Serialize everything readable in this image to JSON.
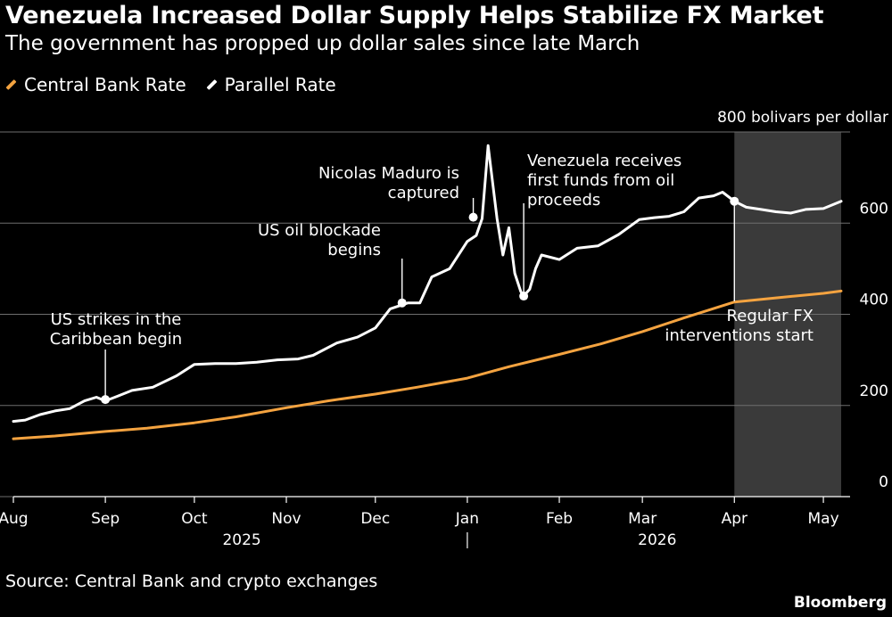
{
  "title": "Venezuela Increased Dollar Supply Helps Stabilize FX Market",
  "subtitle": "The government has propped up dollar sales since late March",
  "source": "Source: Central Bank and crypto exchanges",
  "brand": "Bloomberg",
  "colors": {
    "central": "#f4a340",
    "parallel": "#ffffff",
    "shade": "#3a3a3a",
    "grid": "#6e6e6e"
  },
  "chart_data": {
    "type": "line",
    "y_unit_label": "800 bolivars per dollar",
    "ylim": [
      0,
      800
    ],
    "y_ticks": [
      0,
      200,
      400,
      600
    ],
    "x_range": [
      "2025-08-01",
      "2026-05-10"
    ],
    "x_ticks": [
      {
        "label": "Aug",
        "date": "2025-08-01"
      },
      {
        "label": "Sep",
        "date": "2025-09-01"
      },
      {
        "label": "Oct",
        "date": "2025-10-01"
      },
      {
        "label": "Nov",
        "date": "2025-11-01"
      },
      {
        "label": "Dec",
        "date": "2025-12-01"
      },
      {
        "label": "Jan",
        "date": "2026-01-01"
      },
      {
        "label": "Feb",
        "date": "2026-02-01"
      },
      {
        "label": "Mar",
        "date": "2026-03-01"
      },
      {
        "label": "Apr",
        "date": "2026-04-01"
      },
      {
        "label": "May",
        "date": "2026-05-01"
      }
    ],
    "year_labels": [
      {
        "label": "2025",
        "date": "2025-10-17"
      },
      {
        "label": "2026",
        "date": "2026-03-06"
      }
    ],
    "year_divider_date": "2026-01-01",
    "shaded_period": {
      "start": "2026-04-01",
      "end": "2026-05-07"
    },
    "grid": true,
    "legend_position": "top-left",
    "series": [
      {
        "name": "Central Bank Rate",
        "color": "#f4a340",
        "points": [
          [
            "2025-08-01",
            127
          ],
          [
            "2025-08-15",
            133
          ],
          [
            "2025-09-01",
            143
          ],
          [
            "2025-09-15",
            150
          ],
          [
            "2025-10-01",
            162
          ],
          [
            "2025-10-15",
            175
          ],
          [
            "2025-11-01",
            195
          ],
          [
            "2025-11-15",
            210
          ],
          [
            "2025-12-01",
            225
          ],
          [
            "2025-12-15",
            240
          ],
          [
            "2026-01-01",
            260
          ],
          [
            "2026-01-15",
            285
          ],
          [
            "2026-02-01",
            312
          ],
          [
            "2026-02-15",
            335
          ],
          [
            "2026-03-01",
            362
          ],
          [
            "2026-03-15",
            392
          ],
          [
            "2026-04-01",
            427
          ],
          [
            "2026-04-15",
            436
          ],
          [
            "2026-05-01",
            446
          ],
          [
            "2026-05-07",
            451
          ]
        ]
      },
      {
        "name": "Parallel Rate",
        "color": "#ffffff",
        "points": [
          [
            "2025-08-01",
            165
          ],
          [
            "2025-08-05",
            168
          ],
          [
            "2025-08-10",
            180
          ],
          [
            "2025-08-15",
            188
          ],
          [
            "2025-08-20",
            193
          ],
          [
            "2025-08-25",
            210
          ],
          [
            "2025-08-29",
            218
          ],
          [
            "2025-09-01",
            210
          ],
          [
            "2025-09-05",
            220
          ],
          [
            "2025-09-10",
            233
          ],
          [
            "2025-09-17",
            240
          ],
          [
            "2025-09-25",
            265
          ],
          [
            "2025-10-01",
            290
          ],
          [
            "2025-10-08",
            292
          ],
          [
            "2025-10-15",
            292
          ],
          [
            "2025-10-22",
            295
          ],
          [
            "2025-10-29",
            300
          ],
          [
            "2025-11-05",
            302
          ],
          [
            "2025-11-10",
            310
          ],
          [
            "2025-11-18",
            337
          ],
          [
            "2025-11-25",
            350
          ],
          [
            "2025-12-01",
            370
          ],
          [
            "2025-12-06",
            412
          ],
          [
            "2025-12-12",
            425
          ],
          [
            "2025-12-16",
            425
          ],
          [
            "2025-12-20",
            482
          ],
          [
            "2025-12-26",
            500
          ],
          [
            "2026-01-01",
            560
          ],
          [
            "2026-01-04",
            573
          ],
          [
            "2026-01-06",
            610
          ],
          [
            "2026-01-08",
            770
          ],
          [
            "2026-01-11",
            610
          ],
          [
            "2026-01-13",
            530
          ],
          [
            "2026-01-15",
            590
          ],
          [
            "2026-01-17",
            490
          ],
          [
            "2026-01-19",
            450
          ],
          [
            "2026-01-20",
            440
          ],
          [
            "2026-01-22",
            455
          ],
          [
            "2026-01-24",
            500
          ],
          [
            "2026-01-26",
            530
          ],
          [
            "2026-02-01",
            520
          ],
          [
            "2026-02-07",
            545
          ],
          [
            "2026-02-14",
            550
          ],
          [
            "2026-02-21",
            575
          ],
          [
            "2026-02-28",
            608
          ],
          [
            "2026-03-05",
            612
          ],
          [
            "2026-03-10",
            615
          ],
          [
            "2026-03-15",
            625
          ],
          [
            "2026-03-20",
            655
          ],
          [
            "2026-03-25",
            660
          ],
          [
            "2026-03-28",
            668
          ],
          [
            "2026-04-01",
            648
          ],
          [
            "2026-04-05",
            635
          ],
          [
            "2026-04-10",
            630
          ],
          [
            "2026-04-15",
            625
          ],
          [
            "2026-04-20",
            622
          ],
          [
            "2026-04-25",
            630
          ],
          [
            "2026-05-01",
            632
          ],
          [
            "2026-05-07",
            648
          ]
        ]
      }
    ],
    "annotations": [
      {
        "text": [
          "US strikes in the",
          "Caribbean begin"
        ],
        "date": "2025-09-01",
        "value": 213
      },
      {
        "text": [
          "US oil blockade",
          "begins"
        ],
        "date": "2025-12-10",
        "value": 425
      },
      {
        "text": [
          "Nicolas Maduro is",
          "captured"
        ],
        "date": "2026-01-03",
        "value": 613
      },
      {
        "text": [
          "Venezuela receives",
          "first funds from oil",
          "proceeds"
        ],
        "date": "2026-01-20",
        "value": 440
      },
      {
        "text": [
          "Regular FX",
          "interventions start"
        ],
        "date": "2026-04-01",
        "value": 648
      }
    ]
  }
}
